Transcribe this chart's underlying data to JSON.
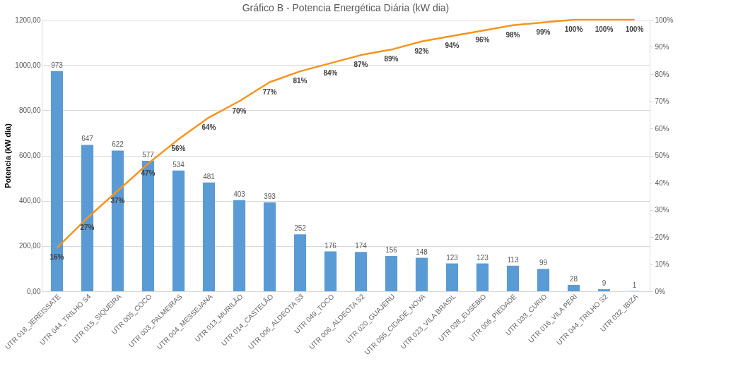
{
  "chart_data": {
    "type": "bar",
    "title": "Gráfico B - Potencia Energética Diária (kW dia)",
    "ylabel": "Potencia (kW dia)",
    "categories": [
      "UTR 018_JEREISSATE",
      "UTR 044_TRILHO S4",
      "UTR 015_SIQUEIRA",
      "UTR 005_COCO",
      "UTR 003_PALMEIRAS",
      "UTR 004_MESSEJANA",
      "UTR 013_MURILÃO",
      "UTR 014_CASTELÃO",
      "UTR 006_ALDEOTA S3",
      "UTR 049_TOCO",
      "UTR 006_ALDEOTA S2",
      "UTR 020_GUAJERU",
      "UTR 055_CIDADE_NOVA",
      "UTR 023_VILA BRASIL",
      "UTR 028_EUSEBIO",
      "UTR 006_PIEDADE",
      "UTR 033_CURIO",
      "UTR 016_VILA PERI",
      "UTR 044_TRILHO S2",
      "UTR 032_IBIZA"
    ],
    "series": [
      {
        "color": "#5b9bd5",
        "values": [
          973,
          647,
          622,
          577,
          534,
          481,
          403,
          393,
          252,
          176,
          174,
          156,
          148,
          123,
          123,
          113,
          99,
          28,
          9,
          1
        ],
        "value_labels": [
          "973",
          "647",
          "622",
          "577",
          "534",
          "481",
          "403",
          "393",
          "252",
          "176",
          "174",
          "156",
          "148",
          "123",
          "123",
          "113",
          "99",
          "28",
          "9",
          "1"
        ]
      },
      {
        "type": "line",
        "axis": "y2",
        "color": "#f7941d",
        "values": [
          16,
          27,
          37,
          47,
          56,
          64,
          70,
          77,
          81,
          84,
          87,
          89,
          92,
          94,
          96,
          98,
          99,
          100,
          100,
          100
        ],
        "value_labels": [
          "16%",
          "27%",
          "37%",
          "47%",
          "56%",
          "64%",
          "70%",
          "77%",
          "81%",
          "84%",
          "87%",
          "89%",
          "92%",
          "94%",
          "96%",
          "98%",
          "99%",
          "100%",
          "100%",
          "100%"
        ]
      }
    ],
    "ylim": [
      0,
      1200
    ],
    "yticks": [
      {
        "value": 0,
        "label": "0,00"
      },
      {
        "value": 200,
        "label": "200,00"
      },
      {
        "value": 400,
        "label": "400,00"
      },
      {
        "value": 600,
        "label": "600,00"
      },
      {
        "value": 800,
        "label": "800,00"
      },
      {
        "value": 1000,
        "label": "1000,00"
      },
      {
        "value": 1200,
        "label": "1200,00"
      }
    ],
    "y2lim": [
      0,
      100
    ],
    "y2ticks": [
      {
        "value": 0,
        "label": "0%"
      },
      {
        "value": 10,
        "label": "10%"
      },
      {
        "value": 20,
        "label": "20%"
      },
      {
        "value": 30,
        "label": "30%"
      },
      {
        "value": 40,
        "label": "40%"
      },
      {
        "value": 50,
        "label": "50%"
      },
      {
        "value": 60,
        "label": "60%"
      },
      {
        "value": 70,
        "label": "70%"
      },
      {
        "value": 80,
        "label": "80%"
      },
      {
        "value": 90,
        "label": "90%"
      },
      {
        "value": 100,
        "label": "100%"
      }
    ],
    "grid": "y",
    "marker": "none",
    "line_style": "solid"
  }
}
